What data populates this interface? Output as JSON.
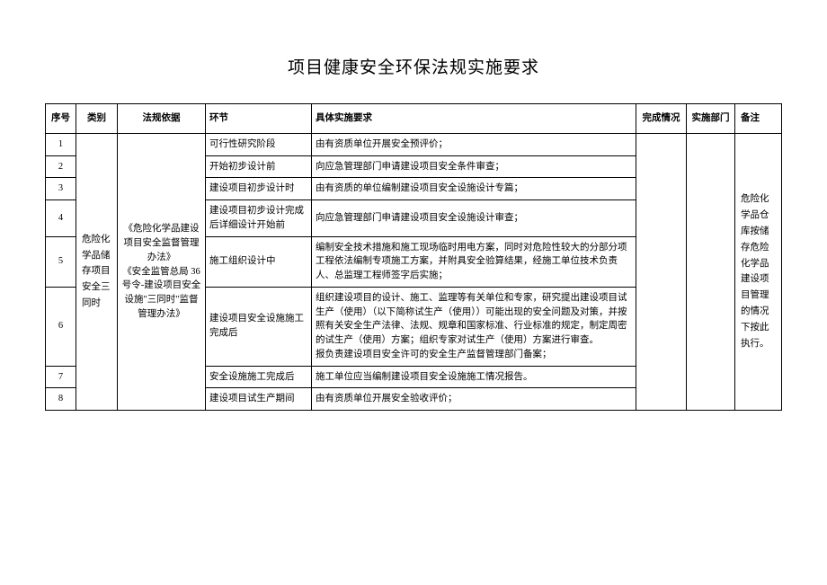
{
  "title": "项目健康安全环保法规实施要求",
  "headers": {
    "seq": "序号",
    "category": "类别",
    "basis": "法规依据",
    "stage": "环节",
    "requirement": "具体实施要求",
    "status": "完成情况",
    "dept": "实施部门",
    "note": "备注"
  },
  "category_text": "危险化学品储存项目安全三同时",
  "basis_text": "《危险化学品建设项目安全监督管理办法》\n《安全监管总局 36 号令-建设项目安全设施\"三同时\"监督管理办法》",
  "note_text": "危险化学品仓库按储存危险化学品建设项目管理的情况下按此执行。",
  "rows": [
    {
      "seq": "1",
      "stage": "可行性研究阶段",
      "req": "由有资质单位开展安全预评价；"
    },
    {
      "seq": "2",
      "stage": "开始初步设计前",
      "req": "向应急管理部门申请建设项目安全条件审查；"
    },
    {
      "seq": "3",
      "stage": "建设项目初步设计时",
      "req": "由有资质的单位编制建设项目安全设施设计专篇；"
    },
    {
      "seq": "4",
      "stage": "建设项目初步设计完成后详细设计开始前",
      "req": "向应急管理部门申请建设项目安全设施设计审查；"
    },
    {
      "seq": "5",
      "stage": "施工组织设计中",
      "req": "编制安全技术措施和施工现场临时用电方案，同时对危险性较大的分部分项工程依法编制专项施工方案，并附具安全验算结果，经施工单位技术负责人、总监理工程师签字后实施；"
    },
    {
      "seq": "6",
      "stage": "建设项目安全设施施工完成后",
      "req": "组织建设项目的设计、施工、监理等有关单位和专家，研究提出建设项目试生产（使用）（以下简称试生产（使用））可能出现的安全问题及对策，并按照有关安全生产法律、法规、规章和国家标准、行业标准的规定，制定周密的试生产（使用）方案；组织专家对试生产（使用）方案进行审查。\n报负责建设项目安全许可的安全生产监督管理部门备案；"
    },
    {
      "seq": "7",
      "stage": "安全设施施工完成后",
      "req": "施工单位应当编制建设项目安全设施施工情况报告。"
    },
    {
      "seq": "8",
      "stage": "建设项目试生产期间",
      "req": "由有资质单位开展安全验收评价；"
    }
  ]
}
